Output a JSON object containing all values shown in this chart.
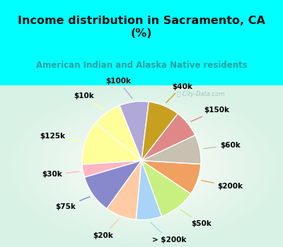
{
  "title": "Income distribution in Sacramento, CA\n(%)",
  "subtitle": "American Indian and Alaska Native residents",
  "watermark": "ⓘ City-Data.com",
  "labels": [
    "$100k",
    "$10k",
    "$125k",
    "$30k",
    "$75k",
    "$20k",
    "> $200k",
    "$50k",
    "$200k",
    "$60k",
    "$150k",
    "$40k"
  ],
  "values": [
    8.0,
    8.0,
    12.0,
    3.5,
    10.5,
    8.5,
    7.0,
    10.0,
    8.5,
    8.0,
    7.5,
    8.5
  ],
  "colors": [
    "#b0a8d8",
    "#ffff99",
    "#ffff99",
    "#ffb6c1",
    "#8888cc",
    "#ffcba4",
    "#a8d4f8",
    "#c8f080",
    "#f0a060",
    "#c8c0b0",
    "#e08888",
    "#c8a020"
  ],
  "bg_cyan": "#00ffff",
  "bg_chart": "#d8f0e8",
  "title_color": "#111111",
  "subtitle_color": "#30a0a0",
  "startangle": 83,
  "label_fontsize": 7.5,
  "title_fontsize": 11.5,
  "subtitle_fontsize": 8.5
}
